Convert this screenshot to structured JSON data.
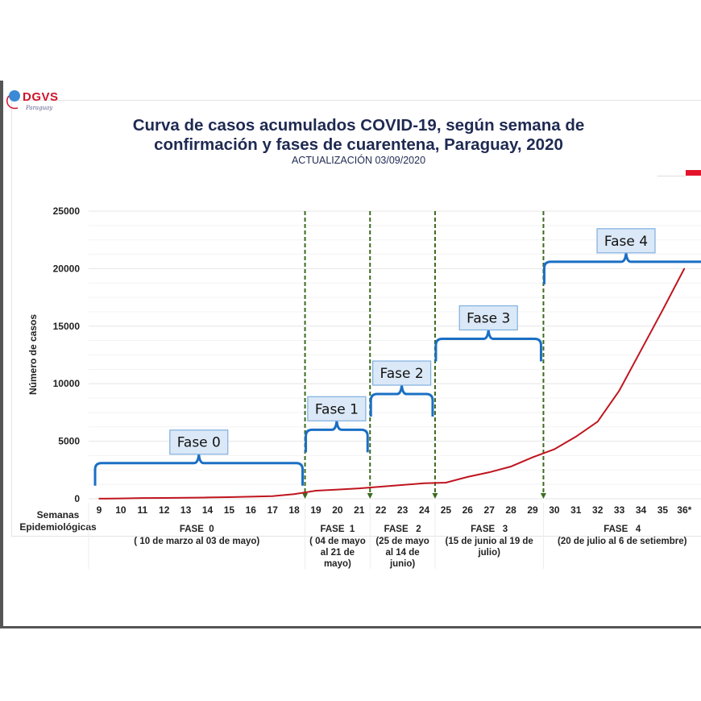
{
  "logo": {
    "text": "DGVS",
    "sub": "Paraguay"
  },
  "header": {
    "title_line1": "Curva de casos acumulados COVID-19, según semana de",
    "title_line2": "confirmación y fases de cuarentena, Paraguay, 2020",
    "subtitle": "ACTUALIZACIÓN 03/09/2020"
  },
  "colors": {
    "curve": "#c0151f",
    "brace": "#1a6fc4",
    "phase_line": "#3c6a1e",
    "title": "#1f2a52",
    "box_fill": "#dbe8f7",
    "box_border": "#7fb0e0"
  },
  "chart_data": {
    "type": "line",
    "title": "Curva de casos acumulados COVID-19, según semana de confirmación y fases de cuarentena, Paraguay, 2020",
    "ylabel": "Número de casos",
    "xlabel": "Semanas Epidemiológicas",
    "ylim": [
      0,
      25000
    ],
    "yticks": [
      "0",
      "5000",
      "10000",
      "15000",
      "20000",
      "25000"
    ],
    "x": [
      "9",
      "10",
      "11",
      "12",
      "13",
      "14",
      "15",
      "16",
      "17",
      "18",
      "19",
      "20",
      "21",
      "22",
      "23",
      "24",
      "25",
      "26",
      "27",
      "28",
      "29",
      "30",
      "31",
      "32",
      "33",
      "34",
      "35",
      "36*"
    ],
    "series": [
      {
        "name": "Casos acumulados",
        "values": [
          10,
          30,
          60,
          70,
          90,
          110,
          140,
          180,
          230,
          400,
          700,
          800,
          900,
          1050,
          1200,
          1350,
          1400,
          1900,
          2300,
          2800,
          3600,
          4300,
          5400,
          6700,
          9400,
          12900,
          16400,
          20000
        ]
      }
    ],
    "grid": true,
    "phases": [
      {
        "label": "Fase 0",
        "name": "FASE  0",
        "dates": [
          "( 10 de marzo al 03 de mayo)"
        ],
        "start_week": 9,
        "end_week": 18,
        "brace_level": 3100
      },
      {
        "label": "Fase 1",
        "name": "FASE  1",
        "dates": [
          "( 04 de mayo",
          "al 21 de",
          "mayo)"
        ],
        "start_week": 19,
        "end_week": 21,
        "brace_level": 6000
      },
      {
        "label": "Fase 2",
        "name": "FASE   2",
        "dates": [
          "(25 de mayo",
          "al 14 de",
          "junio)"
        ],
        "start_week": 22,
        "end_week": 24,
        "brace_level": 9100
      },
      {
        "label": "Fase 3",
        "name": "FASE   3",
        "dates": [
          "(15 de junio al 19 de",
          "julio)"
        ],
        "start_week": 25,
        "end_week": 29,
        "brace_level": 13900
      },
      {
        "label": "Fase 4",
        "name": "FASE   4",
        "dates": [
          "(20 de julio al 6 de setiembre)"
        ],
        "start_week": 30,
        "end_week": 36,
        "brace_level": 20600
      }
    ]
  }
}
